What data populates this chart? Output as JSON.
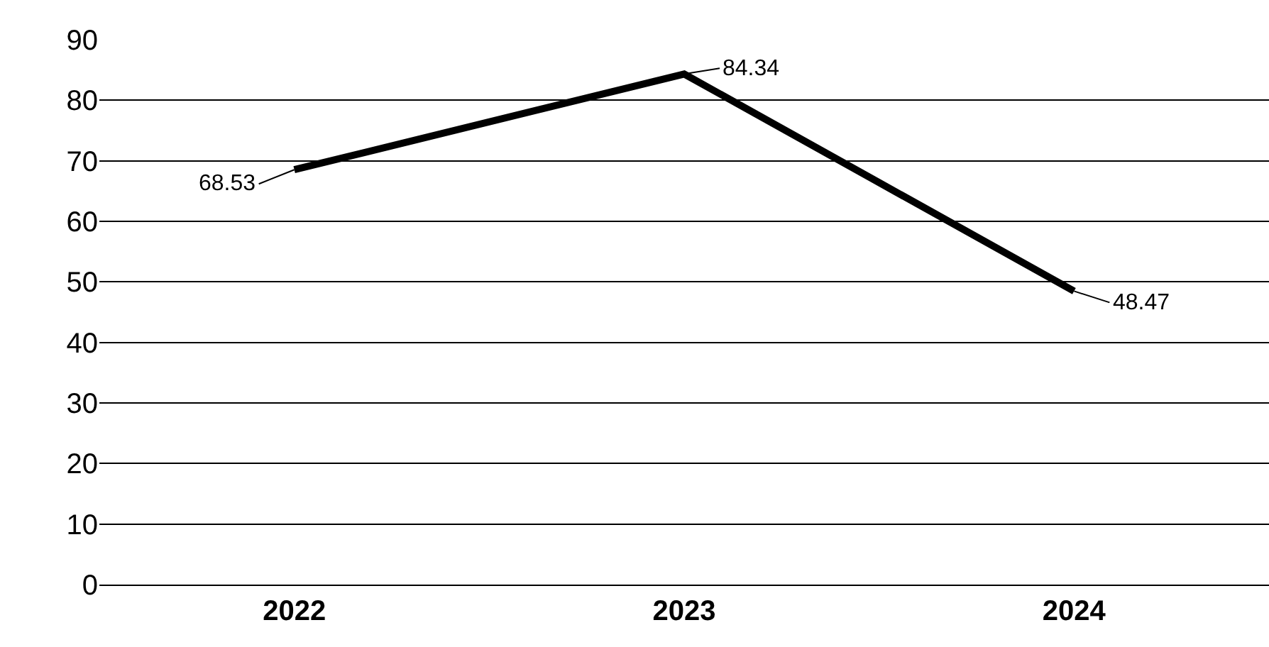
{
  "chart_data": {
    "type": "line",
    "categories": [
      "2022",
      "2023",
      "2024"
    ],
    "series": [
      {
        "color": "#000000",
        "values": [
          68.53,
          84.34,
          48.47
        ]
      }
    ],
    "ylim": [
      0,
      90
    ],
    "yticks": [
      0,
      10,
      20,
      30,
      40,
      50,
      60,
      70,
      80,
      90
    ],
    "grid": "y",
    "data_labels": true,
    "marker": "none",
    "line_style": "solid"
  }
}
